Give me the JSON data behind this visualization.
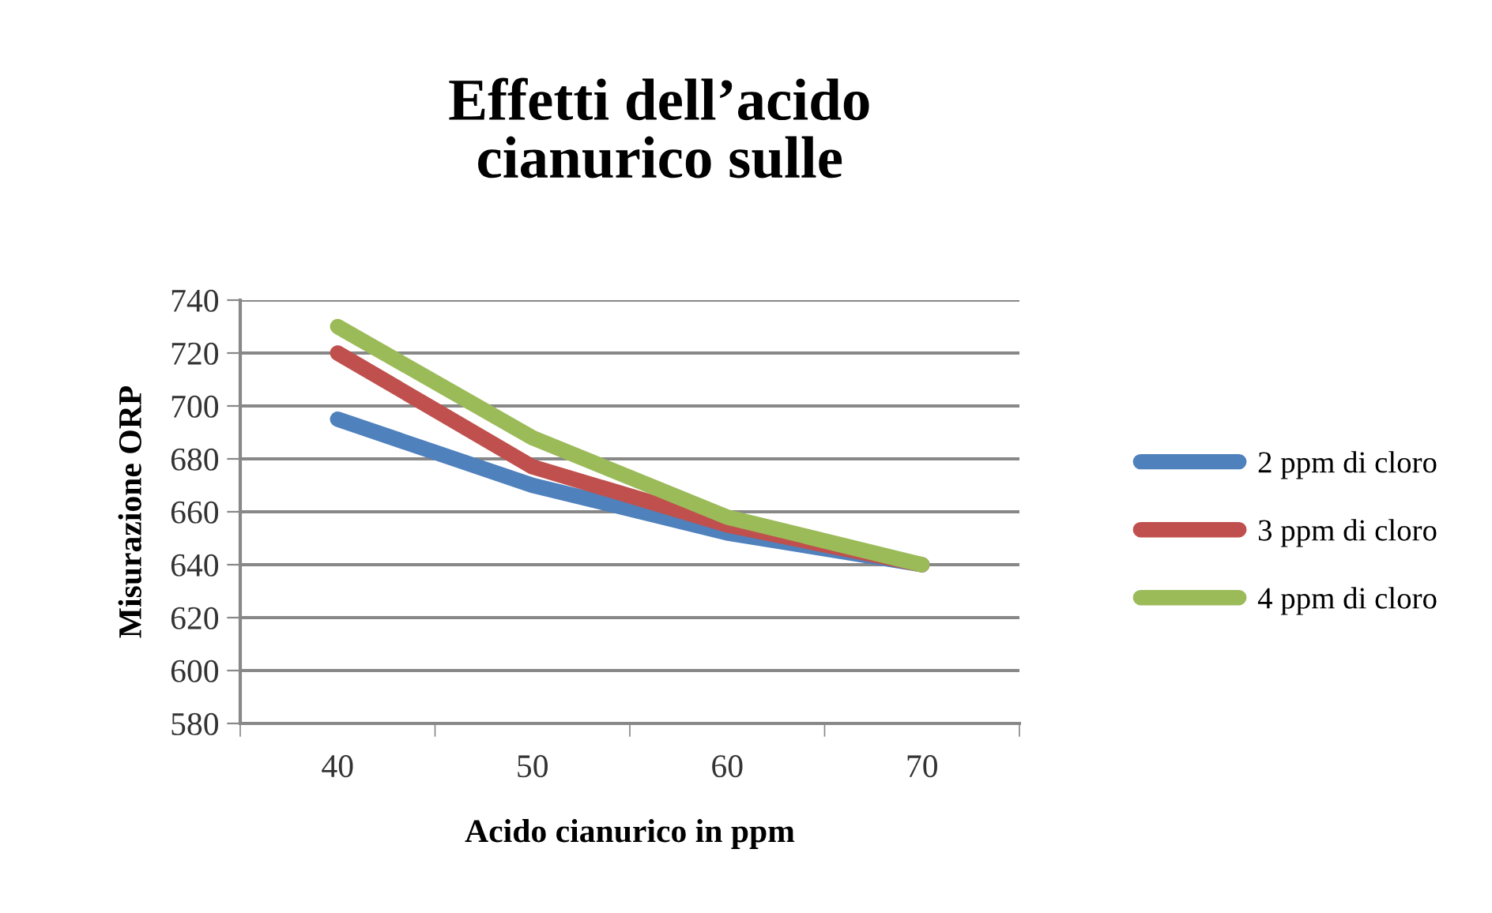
{
  "chart_data": {
    "type": "line",
    "title": "Effetti dell’acido\ncianurico sulle",
    "xlabel": "Acido cianurico in ppm",
    "ylabel": "Misurazione ORP",
    "categories": [
      "40",
      "50",
      "60",
      "70"
    ],
    "series": [
      {
        "name": "2 ppm di cloro",
        "color": "#4f81bd",
        "values": [
          695,
          670,
          652,
          640
        ]
      },
      {
        "name": "3 ppm di cloro",
        "color": "#c0504d",
        "values": [
          720,
          677,
          655,
          640
        ]
      },
      {
        "name": "4 ppm di cloro",
        "color": "#9bbb59",
        "values": [
          730,
          688,
          658,
          640
        ]
      }
    ],
    "ylim": [
      580,
      740
    ],
    "yticks": [
      580,
      600,
      620,
      640,
      660,
      680,
      700,
      720,
      740
    ],
    "grid": "y",
    "legend": "right",
    "marker": "none",
    "line_style": "solid"
  }
}
